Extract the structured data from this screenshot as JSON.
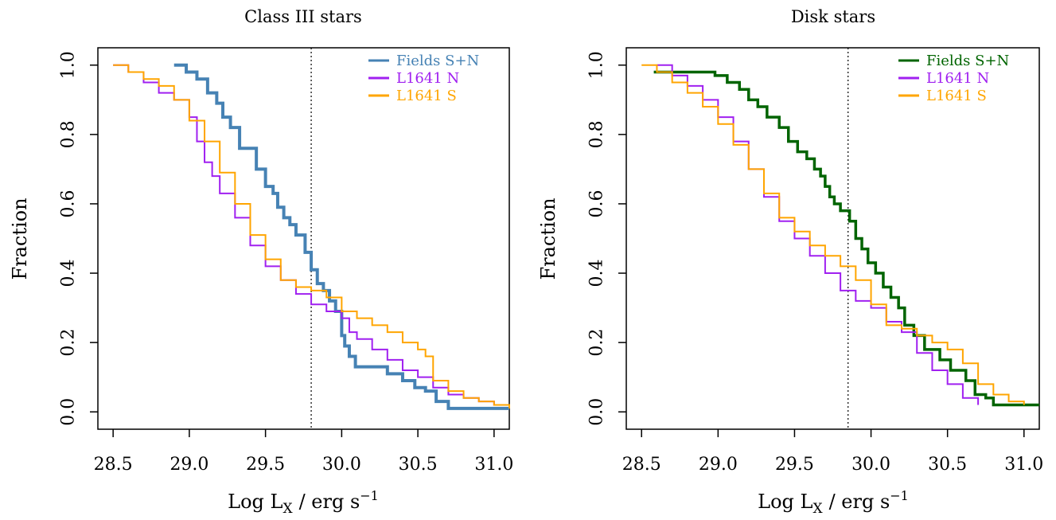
{
  "chart_data": [
    {
      "type": "line",
      "step": true,
      "title": "Class III stars",
      "xlabel_main": "Log L",
      "xlabel_sub": "X",
      "xlabel_unit": "/ erg s",
      "xlabel_sup": "−1",
      "ylabel": "Fraction",
      "xlim": [
        28.4,
        31.1
      ],
      "ylim": [
        -0.05,
        1.05
      ],
      "xticks": [
        "28.5",
        "29.0",
        "29.5",
        "30.0",
        "30.5",
        "31.0"
      ],
      "yticks": [
        "0.0",
        "0.2",
        "0.4",
        "0.6",
        "0.8",
        "1.0"
      ],
      "vline": 29.8,
      "legend_position": "top-right",
      "series": [
        {
          "name": "Fields S+N",
          "color": "#4682b4",
          "width": 4,
          "x": [
            28.9,
            28.98,
            29.05,
            29.12,
            29.18,
            29.22,
            29.27,
            29.33,
            29.44,
            29.5,
            29.55,
            29.58,
            29.62,
            29.66,
            29.7,
            29.76,
            29.8,
            29.84,
            29.88,
            29.92,
            29.96,
            30.0,
            30.02,
            30.05,
            30.09,
            30.14,
            30.3,
            30.4,
            30.48,
            30.55,
            30.62,
            30.7,
            31.1
          ],
          "y": [
            1.0,
            0.98,
            0.96,
            0.92,
            0.89,
            0.85,
            0.82,
            0.76,
            0.7,
            0.65,
            0.63,
            0.59,
            0.56,
            0.54,
            0.51,
            0.46,
            0.41,
            0.37,
            0.35,
            0.32,
            0.29,
            0.22,
            0.19,
            0.16,
            0.13,
            0.13,
            0.11,
            0.09,
            0.07,
            0.06,
            0.03,
            0.01,
            0.01
          ]
        },
        {
          "name": "L1641 N",
          "color": "#a020f0",
          "width": 2,
          "x": [
            28.5,
            28.6,
            28.7,
            28.8,
            28.9,
            29.0,
            29.05,
            29.1,
            29.15,
            29.2,
            29.3,
            29.4,
            29.5,
            29.6,
            29.7,
            29.8,
            29.9,
            30.0,
            30.05,
            30.1,
            30.2,
            30.3,
            30.4,
            30.5,
            30.6,
            30.7,
            30.8,
            30.9,
            31.0,
            31.1
          ],
          "y": [
            1.0,
            0.98,
            0.95,
            0.92,
            0.9,
            0.85,
            0.78,
            0.72,
            0.68,
            0.63,
            0.56,
            0.48,
            0.42,
            0.38,
            0.34,
            0.31,
            0.29,
            0.27,
            0.23,
            0.21,
            0.18,
            0.15,
            0.12,
            0.1,
            0.07,
            0.05,
            0.04,
            0.03,
            0.02,
            0.01
          ]
        },
        {
          "name": "L1641 S",
          "color": "#ffa500",
          "width": 2,
          "x": [
            28.5,
            28.6,
            28.7,
            28.8,
            28.9,
            29.0,
            29.1,
            29.2,
            29.3,
            29.4,
            29.5,
            29.6,
            29.7,
            29.8,
            29.9,
            30.0,
            30.1,
            30.2,
            30.3,
            30.4,
            30.5,
            30.55,
            30.6,
            30.7,
            30.8,
            30.9,
            31.0,
            31.1
          ],
          "y": [
            1.0,
            0.98,
            0.96,
            0.94,
            0.9,
            0.84,
            0.78,
            0.69,
            0.6,
            0.51,
            0.44,
            0.38,
            0.36,
            0.35,
            0.33,
            0.29,
            0.27,
            0.25,
            0.23,
            0.2,
            0.18,
            0.16,
            0.09,
            0.06,
            0.04,
            0.03,
            0.02,
            0.01
          ]
        }
      ]
    },
    {
      "type": "line",
      "step": true,
      "title": "Disk stars",
      "xlabel_main": "Log L",
      "xlabel_sub": "X",
      "xlabel_unit": "/ erg s",
      "xlabel_sup": "−1",
      "ylabel": "Fraction",
      "xlim": [
        28.4,
        31.1
      ],
      "ylim": [
        -0.05,
        1.05
      ],
      "xticks": [
        "28.5",
        "29.0",
        "29.5",
        "30.0",
        "30.5",
        "31.0"
      ],
      "yticks": [
        "0.0",
        "0.2",
        "0.4",
        "0.6",
        "0.8",
        "1.0"
      ],
      "vline": 29.85,
      "legend_position": "top-right",
      "series": [
        {
          "name": "Fields S+N",
          "color": "#006400",
          "width": 3.5,
          "x": [
            28.58,
            28.98,
            29.06,
            29.14,
            29.2,
            29.26,
            29.32,
            29.4,
            29.46,
            29.52,
            29.58,
            29.63,
            29.67,
            29.7,
            29.73,
            29.76,
            29.8,
            29.86,
            29.9,
            29.94,
            29.98,
            30.03,
            30.08,
            30.13,
            30.18,
            30.22,
            30.28,
            30.35,
            30.45,
            30.52,
            30.62,
            30.68,
            30.75,
            30.8,
            31.1
          ],
          "y": [
            0.98,
            0.97,
            0.95,
            0.93,
            0.9,
            0.88,
            0.85,
            0.82,
            0.78,
            0.75,
            0.73,
            0.7,
            0.68,
            0.65,
            0.62,
            0.6,
            0.58,
            0.55,
            0.5,
            0.47,
            0.43,
            0.4,
            0.36,
            0.33,
            0.3,
            0.25,
            0.22,
            0.18,
            0.15,
            0.12,
            0.09,
            0.05,
            0.04,
            0.02,
            0.02
          ]
        },
        {
          "name": "L1641 N",
          "color": "#a020f0",
          "width": 2,
          "x": [
            28.6,
            28.7,
            28.8,
            28.9,
            29.0,
            29.1,
            29.2,
            29.3,
            29.4,
            29.5,
            29.6,
            29.7,
            29.8,
            29.9,
            30.0,
            30.1,
            30.2,
            30.3,
            30.4,
            30.5,
            30.6,
            30.7
          ],
          "y": [
            1.0,
            0.97,
            0.94,
            0.9,
            0.85,
            0.78,
            0.7,
            0.62,
            0.55,
            0.5,
            0.45,
            0.4,
            0.35,
            0.32,
            0.3,
            0.26,
            0.23,
            0.17,
            0.12,
            0.08,
            0.04,
            0.02
          ]
        },
        {
          "name": "L1641 S",
          "color": "#ffa500",
          "width": 2,
          "x": [
            28.5,
            28.6,
            28.7,
            28.8,
            28.9,
            29.0,
            29.1,
            29.2,
            29.3,
            29.4,
            29.5,
            29.6,
            29.7,
            29.8,
            29.9,
            30.0,
            30.1,
            30.2,
            30.3,
            30.4,
            30.5,
            30.6,
            30.7,
            30.8,
            30.9,
            31.0
          ],
          "y": [
            1.0,
            0.98,
            0.95,
            0.92,
            0.88,
            0.83,
            0.77,
            0.7,
            0.63,
            0.56,
            0.52,
            0.48,
            0.45,
            0.42,
            0.38,
            0.31,
            0.25,
            0.24,
            0.22,
            0.2,
            0.18,
            0.14,
            0.08,
            0.05,
            0.03,
            0.02
          ]
        }
      ]
    }
  ]
}
